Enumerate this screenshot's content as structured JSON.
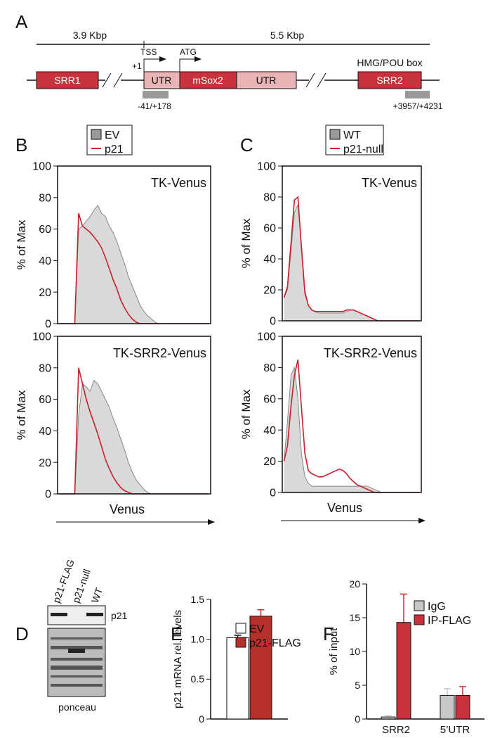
{
  "panel_a": {
    "label": "A",
    "span_left": "3.9 Kbp",
    "span_right": "5.5 Kbp",
    "tss": "TSS",
    "plus_one": "+1",
    "atg": "ATG",
    "utr_5": "UTR",
    "gene": "mSox2",
    "utr_3": "UTR",
    "srr1": "SRR1",
    "srr2": "SRR2",
    "box_note": "HMG/POU box",
    "primer_1": "-41/+178",
    "primer_2": "+3957/+4231"
  },
  "panel_d": {
    "label": "D",
    "lanes": [
      "p21-FLAG",
      "p21-null",
      "WT"
    ],
    "blot": "p21",
    "stain": "ponceau"
  },
  "chart_data": [
    {
      "type": "histogram",
      "panel": "B",
      "title": "TK-Venus",
      "ylabel": "% of Max",
      "ylim": [
        0,
        100
      ],
      "yticks": [
        0,
        20,
        40,
        60,
        80,
        100
      ],
      "series": [
        {
          "name": "EV",
          "color": "#d9d9d9",
          "style": "area",
          "values": [
            0,
            0,
            0,
            0,
            0,
            60,
            62,
            65,
            68,
            72,
            75,
            70,
            68,
            62,
            58,
            52,
            45,
            38,
            30,
            24,
            18,
            12,
            8,
            5,
            3,
            1,
            0,
            0,
            0,
            0,
            0,
            0,
            0,
            0,
            0,
            0,
            0,
            0,
            0,
            0
          ]
        },
        {
          "name": "p21",
          "color": "#c8202a",
          "style": "line",
          "values": [
            0,
            0,
            0,
            0,
            0,
            70,
            62,
            60,
            58,
            55,
            52,
            48,
            42,
            35,
            28,
            22,
            15,
            10,
            6,
            3,
            1,
            0,
            0,
            0,
            0,
            0,
            0,
            0,
            0,
            0,
            0,
            0,
            0,
            0,
            0,
            0,
            0,
            0,
            0,
            0
          ]
        }
      ]
    },
    {
      "type": "histogram",
      "title": "TK-SRR2-Venus",
      "ylabel": "% of Max",
      "xlabel": "Venus",
      "ylim": [
        0,
        100
      ],
      "yticks": [
        0,
        20,
        40,
        60,
        80,
        100
      ],
      "series": [
        {
          "color": "#d9d9d9",
          "style": "area",
          "values": [
            0,
            0,
            0,
            0,
            0,
            50,
            70,
            68,
            65,
            72,
            70,
            65,
            60,
            55,
            48,
            42,
            35,
            28,
            20,
            14,
            9,
            6,
            3,
            1,
            0,
            0,
            0,
            0,
            0,
            0,
            0,
            0,
            0,
            0,
            0,
            0,
            0,
            0,
            0,
            0
          ]
        },
        {
          "color": "#c8202a",
          "style": "line",
          "values": [
            0,
            0,
            0,
            0,
            0,
            80,
            70,
            60,
            52,
            45,
            38,
            30,
            22,
            16,
            11,
            7,
            4,
            2,
            1,
            0,
            0,
            0,
            0,
            0,
            0,
            0,
            0,
            0,
            0,
            0,
            0,
            0,
            0,
            0,
            0,
            0,
            0,
            0,
            0,
            0
          ]
        }
      ]
    },
    {
      "type": "histogram",
      "panel": "C",
      "title": "TK-Venus",
      "ylabel": "% of Max",
      "ylim": [
        0,
        100
      ],
      "yticks": [
        0,
        20,
        40,
        60,
        80,
        100
      ],
      "series": [
        {
          "name": "WT",
          "color": "#d9d9d9",
          "style": "area",
          "values": [
            15,
            20,
            45,
            70,
            75,
            50,
            20,
            10,
            7,
            6,
            5,
            5,
            5,
            5,
            5,
            5,
            5,
            5,
            6,
            7,
            7,
            6,
            5,
            4,
            3,
            2,
            1,
            0,
            0,
            0,
            0,
            0,
            0,
            0,
            0,
            0,
            0,
            0,
            0,
            0
          ]
        },
        {
          "name": "p21-null",
          "color": "#c8202a",
          "style": "line",
          "values": [
            15,
            22,
            50,
            78,
            80,
            48,
            18,
            10,
            7,
            6,
            6,
            6,
            6,
            6,
            6,
            6,
            6,
            6,
            7,
            7,
            7,
            6,
            5,
            4,
            3,
            2,
            1,
            0,
            0,
            0,
            0,
            0,
            0,
            0,
            0,
            0,
            0,
            0,
            0,
            0
          ]
        }
      ]
    },
    {
      "type": "histogram",
      "title": "TK-SRR2-Venus",
      "ylabel": "% of Max",
      "xlabel": "Venus",
      "ylim": [
        0,
        100
      ],
      "yticks": [
        0,
        20,
        40,
        60,
        80,
        100
      ],
      "series": [
        {
          "color": "#d9d9d9",
          "style": "area",
          "values": [
            20,
            45,
            75,
            80,
            60,
            25,
            10,
            6,
            4,
            4,
            4,
            4,
            4,
            4,
            4,
            4,
            4,
            4,
            4,
            4,
            4,
            4,
            4,
            4,
            4,
            3,
            2,
            1,
            0,
            0,
            0,
            0,
            0,
            0,
            0,
            0,
            0,
            0,
            0,
            0
          ]
        },
        {
          "color": "#c8202a",
          "style": "line",
          "values": [
            20,
            30,
            55,
            75,
            85,
            55,
            25,
            14,
            12,
            11,
            10,
            10,
            11,
            12,
            13,
            14,
            15,
            14,
            12,
            9,
            7,
            5,
            4,
            3,
            2,
            1,
            0,
            0,
            0,
            0,
            0,
            0,
            0,
            0,
            0,
            0,
            0,
            0,
            0,
            0
          ]
        }
      ]
    },
    {
      "type": "bar",
      "panel": "E",
      "ylabel": "p21 mRNA rel. levels",
      "ylim": [
        0,
        1.5
      ],
      "yticks": [
        0,
        0.5,
        {
          "value": 1,
          "label": "1.0"
        },
        1.5
      ],
      "categories": [
        null
      ],
      "series": [
        {
          "name": "EV",
          "color": "#ffffff",
          "values": [
            1.02
          ],
          "errors": [
            0.03
          ]
        },
        {
          "name": "p21-FLAG",
          "color": "#b5302a",
          "values": [
            1.29
          ],
          "errors": [
            0.08
          ]
        }
      ]
    },
    {
      "type": "bar",
      "panel": "F",
      "ylabel": "% of input",
      "ylim": [
        0,
        20
      ],
      "yticks": [
        0,
        5,
        10,
        15,
        20
      ],
      "categories": [
        "SRR2",
        "5’UTR"
      ],
      "series": [
        {
          "name": "IgG",
          "color": "#c8c8c8",
          "values": [
            0.3,
            3.5
          ],
          "errors": [
            0.2,
            1.0
          ]
        },
        {
          "name": "IP-FLAG",
          "color": "#c8323c",
          "values": [
            14.3,
            3.5
          ],
          "errors": [
            4.2,
            1.3
          ]
        }
      ]
    }
  ]
}
